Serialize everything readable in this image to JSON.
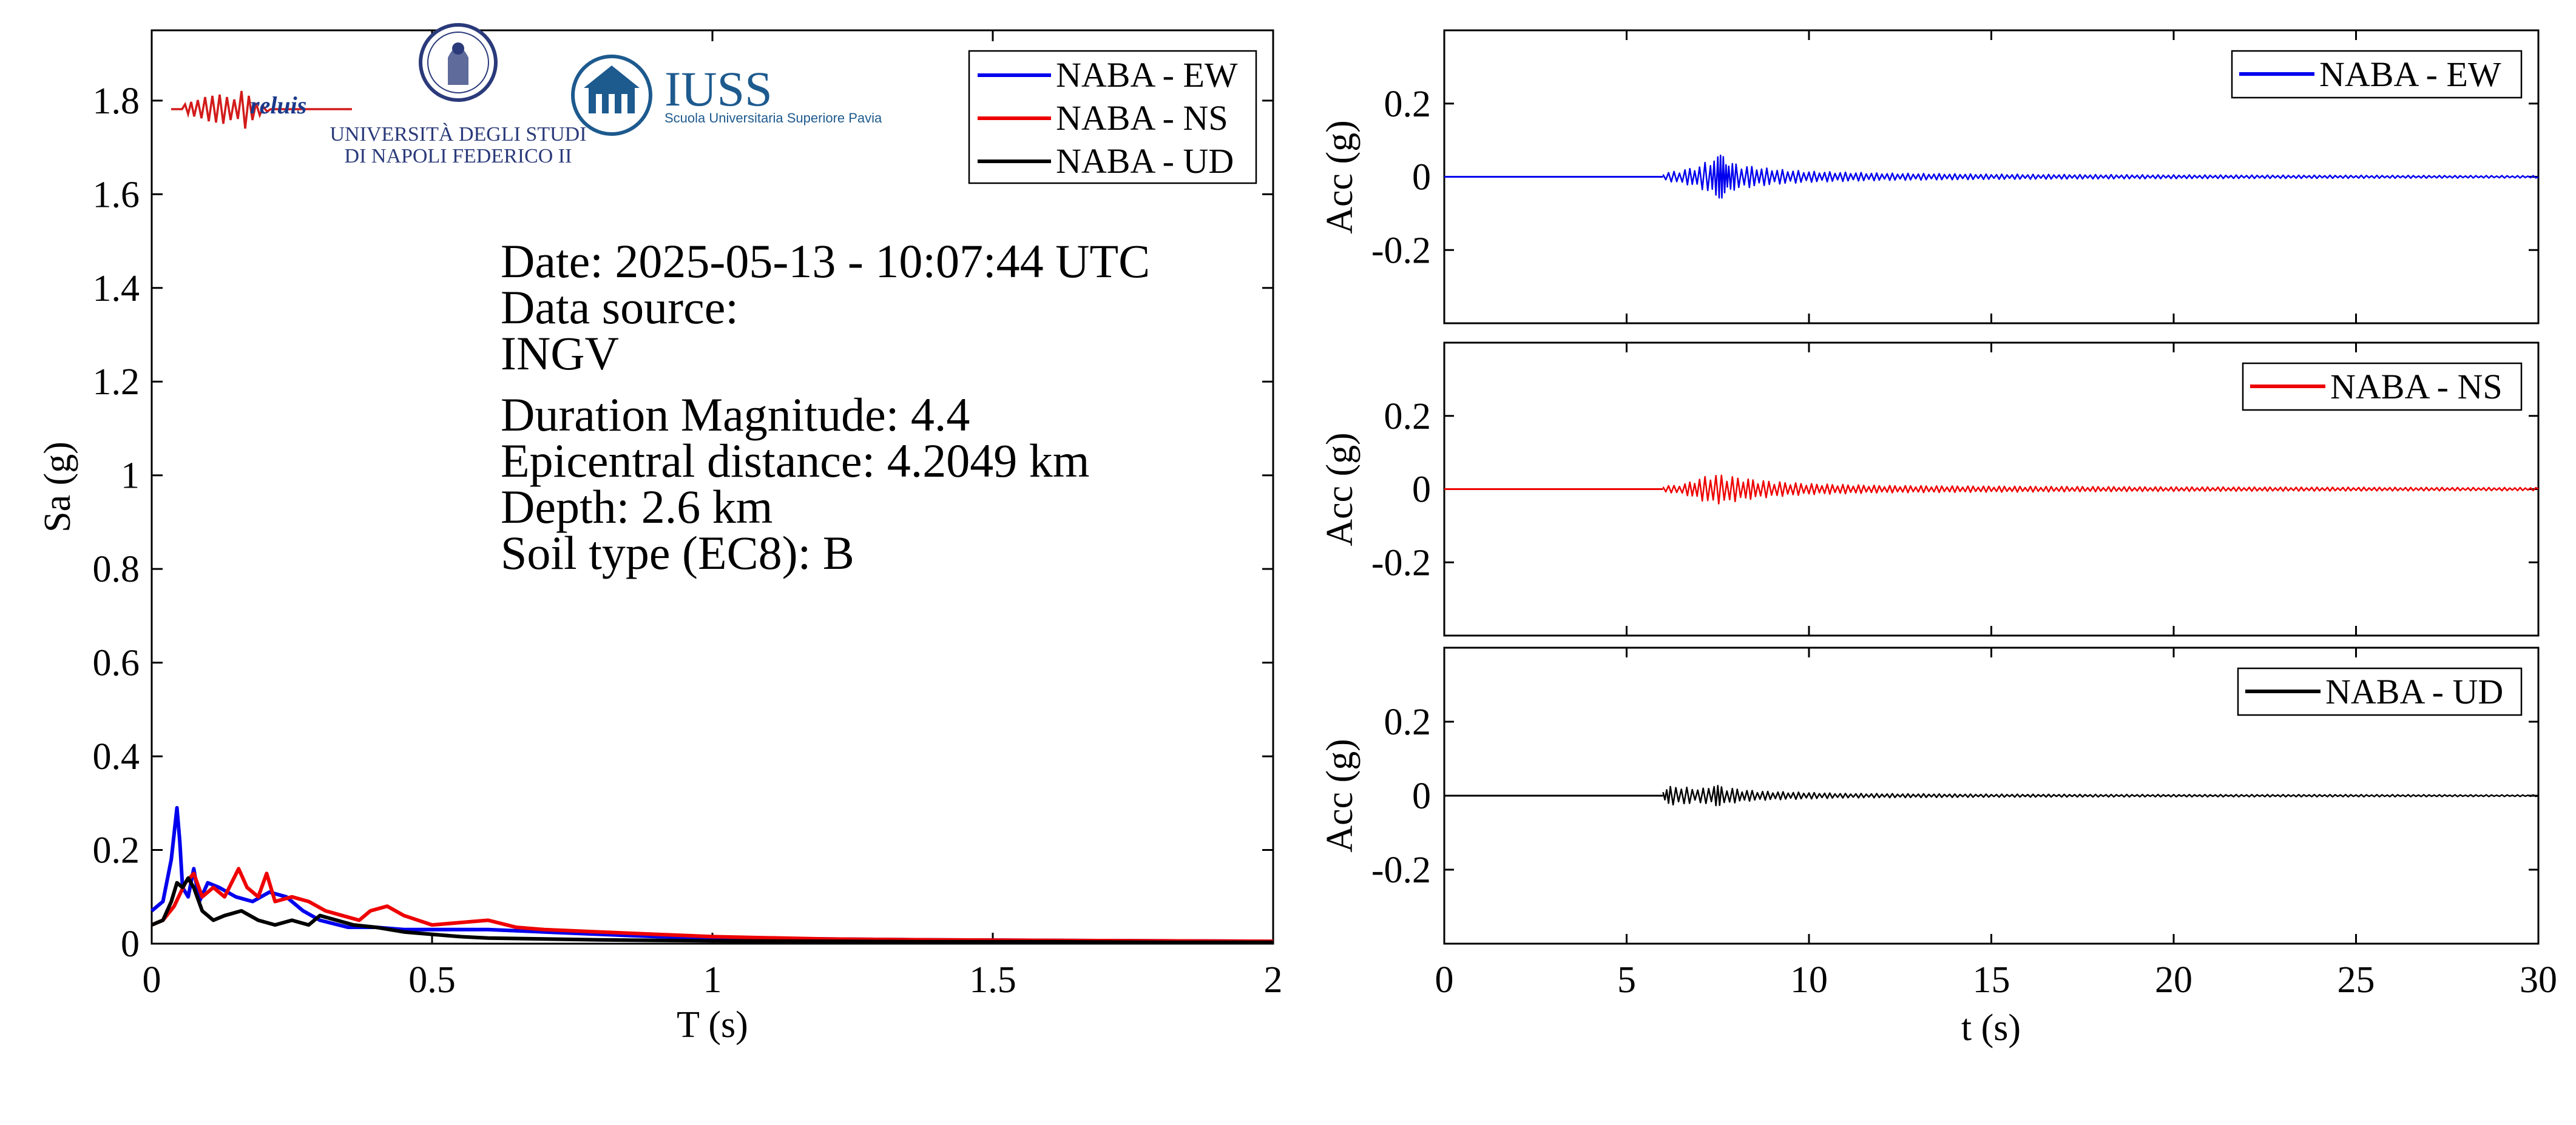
{
  "colors": {
    "ew": "#0000ee",
    "ns": "#ee0000",
    "ud": "#000000",
    "iuss_blue": "#1d5a8e",
    "unina_blue": "#2a3a7a"
  },
  "logos": {
    "reluis": "reluis",
    "unina_line1": "UNIVERSITÀ DEGLI STUDI",
    "unina_line2": "DI NAPOLI FEDERICO II",
    "iuss_name": "IUSS",
    "iuss_sub": "Scuola Universitaria Superiore Pavia"
  },
  "info": {
    "date": "Date: 2025-05-13 - 10:07:44 UTC",
    "source_label": "Data source:",
    "source": "INGV",
    "magnitude": "Duration Magnitude: 4.4",
    "distance": "Epicentral distance: 4.2049 km",
    "depth": "Depth: 2.6 km",
    "soil": "Soil type (EC8): B"
  },
  "chart_data": [
    {
      "type": "line",
      "xlabel": "T (s)",
      "ylabel": "Sa (g)",
      "xlim": [
        0,
        2
      ],
      "ylim": [
        0,
        1.95
      ],
      "xticks": [
        0,
        0.5,
        1,
        1.5,
        2
      ],
      "xtick_labels": [
        "0",
        "0.5",
        "1",
        "1.5",
        "2"
      ],
      "yticks": [
        0,
        0.2,
        0.4,
        0.6,
        0.8,
        1,
        1.2,
        1.4,
        1.6,
        1.8
      ],
      "ytick_labels": [
        "0",
        "0.2",
        "0.4",
        "0.6",
        "0.8",
        "1",
        "1.2",
        "1.4",
        "1.6",
        "1.8"
      ],
      "legend_position": "top-right",
      "series": [
        {
          "name": "NABA - EW",
          "color": "#0000ee",
          "x": [
            0,
            0.02,
            0.035,
            0.045,
            0.05,
            0.055,
            0.065,
            0.075,
            0.085,
            0.1,
            0.12,
            0.15,
            0.18,
            0.21,
            0.24,
            0.27,
            0.3,
            0.35,
            0.4,
            0.45,
            0.5,
            0.55,
            0.6,
            0.7,
            0.8,
            0.9,
            1.0,
            1.2,
            1.4,
            1.6,
            1.8,
            2.0
          ],
          "y": [
            0.07,
            0.09,
            0.18,
            0.29,
            0.22,
            0.12,
            0.1,
            0.16,
            0.09,
            0.13,
            0.12,
            0.1,
            0.09,
            0.11,
            0.1,
            0.07,
            0.05,
            0.035,
            0.035,
            0.03,
            0.03,
            0.03,
            0.03,
            0.025,
            0.02,
            0.015,
            0.012,
            0.01,
            0.008,
            0.007,
            0.006,
            0.005
          ]
        },
        {
          "name": "NABA - NS",
          "color": "#ee0000",
          "x": [
            0,
            0.02,
            0.04,
            0.06,
            0.075,
            0.09,
            0.11,
            0.13,
            0.155,
            0.17,
            0.19,
            0.205,
            0.22,
            0.25,
            0.28,
            0.31,
            0.34,
            0.37,
            0.39,
            0.42,
            0.45,
            0.5,
            0.55,
            0.6,
            0.65,
            0.7,
            0.8,
            0.9,
            1.0,
            1.2,
            1.4,
            1.6,
            1.8,
            2.0
          ],
          "y": [
            0.04,
            0.05,
            0.08,
            0.13,
            0.15,
            0.1,
            0.12,
            0.1,
            0.16,
            0.12,
            0.1,
            0.15,
            0.09,
            0.1,
            0.09,
            0.07,
            0.06,
            0.05,
            0.07,
            0.08,
            0.06,
            0.04,
            0.045,
            0.05,
            0.035,
            0.03,
            0.025,
            0.02,
            0.015,
            0.01,
            0.008,
            0.007,
            0.006,
            0.005
          ]
        },
        {
          "name": "NABA - UD",
          "color": "#000000",
          "x": [
            0,
            0.02,
            0.035,
            0.045,
            0.055,
            0.065,
            0.075,
            0.09,
            0.11,
            0.13,
            0.16,
            0.19,
            0.22,
            0.25,
            0.28,
            0.3,
            0.33,
            0.36,
            0.4,
            0.45,
            0.5,
            0.55,
            0.6,
            0.7,
            0.8,
            0.9,
            1.0,
            1.2,
            1.4,
            1.6,
            1.8,
            2.0
          ],
          "y": [
            0.04,
            0.05,
            0.09,
            0.13,
            0.12,
            0.14,
            0.12,
            0.07,
            0.05,
            0.06,
            0.07,
            0.05,
            0.04,
            0.05,
            0.04,
            0.06,
            0.05,
            0.04,
            0.035,
            0.025,
            0.02,
            0.015,
            0.012,
            0.01,
            0.008,
            0.007,
            0.006,
            0.005,
            0.004,
            0.004,
            0.003,
            0.003
          ]
        }
      ]
    },
    {
      "type": "line",
      "xlabel": "",
      "ylabel": "Acc (g)",
      "xlim": [
        0,
        30
      ],
      "ylim": [
        -0.4,
        0.4
      ],
      "yticks": [
        -0.2,
        0,
        0.2
      ],
      "ytick_labels": [
        "-0.2",
        "0",
        "0.2"
      ],
      "legend_position": "top-right",
      "series": [
        {
          "name": "NABA - EW",
          "color": "#0000ee",
          "x": [
            6.0,
            6.3,
            6.6,
            7.0,
            7.3,
            7.5,
            7.65,
            7.8,
            8.0,
            8.3,
            8.7,
            9.2,
            10.0,
            12.0,
            15.0,
            20.0,
            25.0,
            30.0
          ],
          "y": [
            0.01,
            -0.015,
            0.02,
            0.03,
            0.05,
            0.055,
            -0.065,
            0.04,
            -0.035,
            0.03,
            -0.025,
            0.02,
            0.015,
            0.01,
            0.007,
            0.005,
            0.004,
            0.003
          ]
        }
      ]
    },
    {
      "type": "line",
      "xlabel": "",
      "ylabel": "Acc (g)",
      "xlim": [
        0,
        30
      ],
      "ylim": [
        -0.4,
        0.4
      ],
      "yticks": [
        -0.2,
        0,
        0.2
      ],
      "ytick_labels": [
        "-0.2",
        "0",
        "0.2"
      ],
      "legend_position": "top-right",
      "series": [
        {
          "name": "NABA - NS",
          "color": "#ee0000",
          "x": [
            6.0,
            6.3,
            6.6,
            7.0,
            7.3,
            7.6,
            7.9,
            8.2,
            8.6,
            9.2,
            10.0,
            12.0,
            15.0,
            20.0,
            25.0,
            30.0
          ],
          "y": [
            0.01,
            -0.01,
            0.015,
            0.03,
            -0.04,
            0.04,
            -0.035,
            0.03,
            -0.025,
            0.02,
            0.015,
            0.01,
            0.008,
            0.006,
            0.005,
            0.004
          ]
        }
      ]
    },
    {
      "type": "line",
      "xlabel": "t (s)",
      "ylabel": "Acc (g)",
      "xlim": [
        0,
        30
      ],
      "ylim": [
        -0.4,
        0.4
      ],
      "xticks": [
        0,
        5,
        10,
        15,
        20,
        25,
        30
      ],
      "xtick_labels": [
        "0",
        "5",
        "10",
        "15",
        "20",
        "25",
        "30"
      ],
      "yticks": [
        -0.2,
        0,
        0.2
      ],
      "ytick_labels": [
        "-0.2",
        "0",
        "0.2"
      ],
      "legend_position": "top-right",
      "series": [
        {
          "name": "NABA - UD",
          "color": "#000000",
          "x": [
            6.0,
            6.2,
            6.5,
            6.8,
            7.1,
            7.4,
            7.6,
            7.9,
            8.3,
            8.8,
            9.5,
            11.0,
            15.0,
            20.0,
            25.0,
            30.0
          ],
          "y": [
            0.015,
            -0.025,
            0.025,
            -0.02,
            0.02,
            0.03,
            -0.025,
            0.02,
            -0.015,
            0.012,
            0.01,
            0.006,
            0.004,
            0.003,
            0.003,
            0.002
          ]
        }
      ]
    }
  ]
}
